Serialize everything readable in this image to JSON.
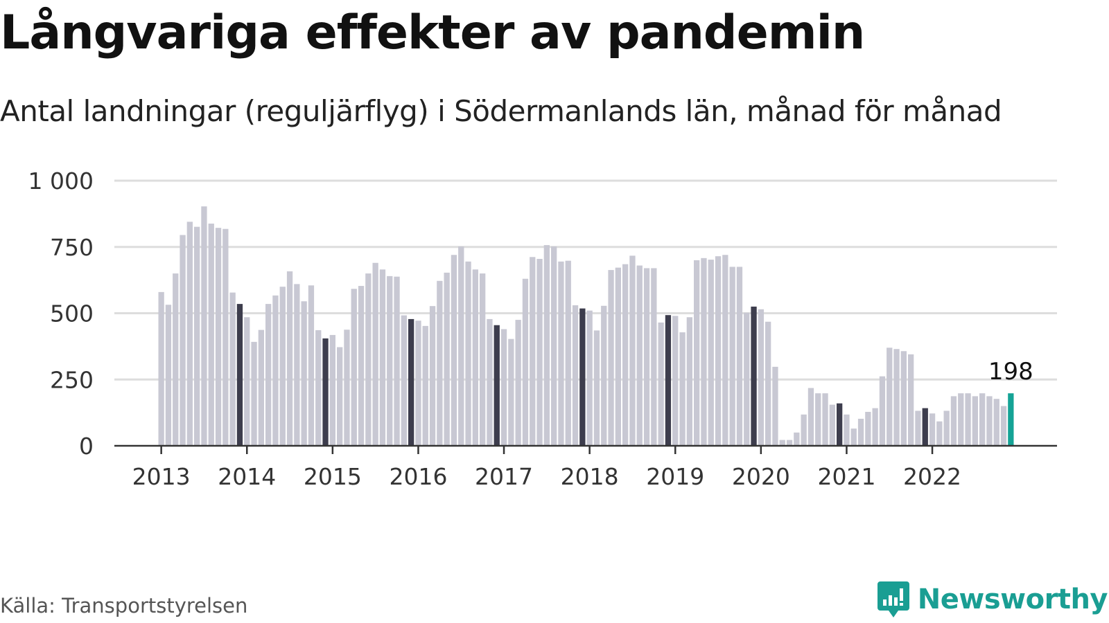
{
  "header": {
    "title": "Långvariga effekter av pandemin",
    "subtitle": "Antal landningar (reguljärflyg) i Södermanlands län, månad för månad"
  },
  "footer": {
    "source": "Källa: Transportstyrelsen",
    "brand": "Newsworthy",
    "brand_color": "#1a9e93",
    "brand_icon": "bar-chart-speech-bubble-icon"
  },
  "colors": {
    "bar_default": "#c8c8d3",
    "bar_december": "#3d3d4d",
    "bar_latest": "#15a396",
    "grid": "#dddddd",
    "axis": "#333333"
  },
  "chart_data": {
    "type": "bar",
    "title": "Långvariga effekter av pandemin",
    "subtitle": "Antal landningar (reguljärflyg) i Södermanlands län, månad för månad",
    "xlabel": "",
    "ylabel": "",
    "ylim": [
      0,
      1000
    ],
    "yticks": [
      0,
      250,
      500,
      750,
      1000
    ],
    "ytick_labels": [
      "0",
      "250",
      "500",
      "750",
      "1 000"
    ],
    "xtick_labels": [
      "2013",
      "2014",
      "2015",
      "2016",
      "2017",
      "2018",
      "2019",
      "2020",
      "2021",
      "2022"
    ],
    "start": "2013-01",
    "end": "2022-12",
    "grid": true,
    "legend": "none",
    "highlight": "december bars dark, latest month teal",
    "annotation": {
      "month": "2022-12",
      "label": "198"
    },
    "values": [
      580,
      532,
      650,
      795,
      845,
      826,
      903,
      838,
      822,
      818,
      578,
      535,
      485,
      392,
      437,
      535,
      567,
      600,
      658,
      610,
      545,
      605,
      436,
      405,
      418,
      372,
      438,
      592,
      603,
      650,
      690,
      665,
      640,
      638,
      492,
      478,
      472,
      452,
      527,
      622,
      653,
      720,
      752,
      695,
      665,
      650,
      478,
      455,
      440,
      403,
      475,
      630,
      712,
      705,
      757,
      752,
      695,
      698,
      530,
      518,
      510,
      435,
      528,
      663,
      672,
      685,
      717,
      680,
      670,
      670,
      465,
      493,
      490,
      428,
      485,
      700,
      708,
      702,
      715,
      720,
      675,
      675,
      502,
      525,
      515,
      468,
      298,
      22,
      22,
      50,
      118,
      218,
      198,
      198,
      155,
      160,
      118,
      65,
      102,
      128,
      142,
      262,
      370,
      365,
      357,
      345,
      132,
      142,
      122,
      92,
      132,
      187,
      198,
      198,
      187,
      198,
      187,
      177,
      150,
      198
    ]
  }
}
